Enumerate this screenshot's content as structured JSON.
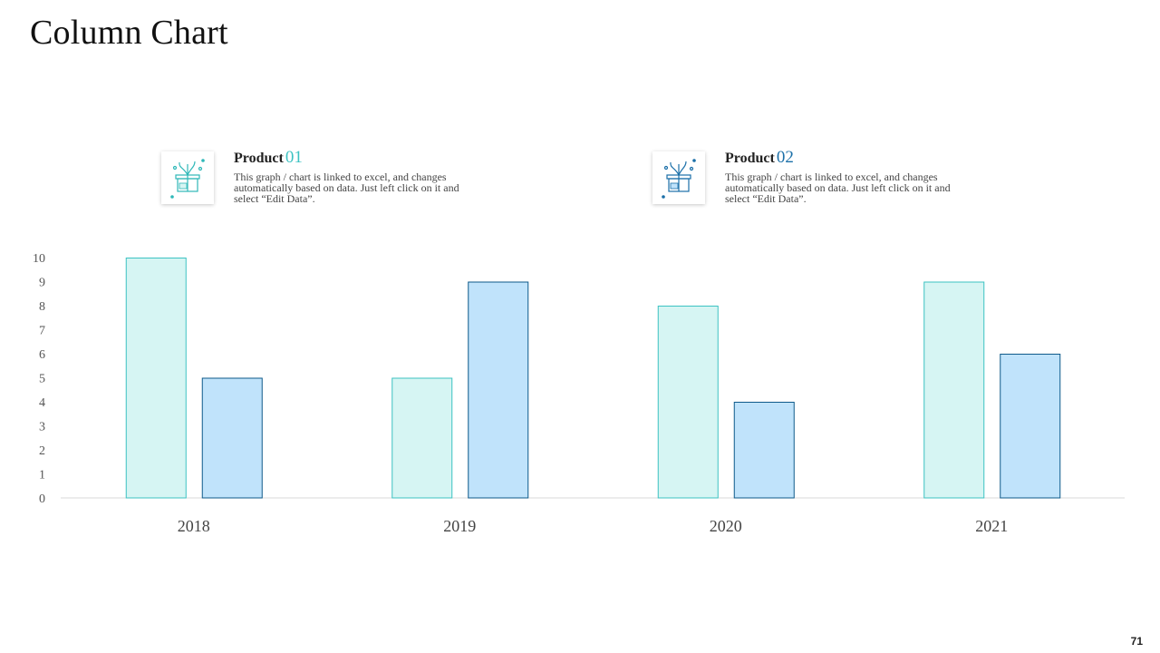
{
  "slide": {
    "title": "Column Chart",
    "page_number": "71"
  },
  "legend": [
    {
      "label": "Product",
      "number": "01",
      "description": "This graph / chart is linked to excel, and changes automatically based on data. Just left click on it and select “Edit Data”.",
      "icon": "gift-box-icon",
      "fill": "#d6f5f3",
      "stroke": "#3cc2c2",
      "accent": "#2fb8b8"
    },
    {
      "label": "Product",
      "number": "02",
      "description": "This graph / chart is linked to excel, and changes automatically based on data. Just left click on it and select “Edit Data”.",
      "icon": "gift-box-icon",
      "fill": "#c0e3fb",
      "stroke": "#0e5a8a",
      "accent": "#1a6fa8"
    }
  ],
  "chart_data": {
    "type": "bar",
    "categories": [
      "2018",
      "2019",
      "2020",
      "2021"
    ],
    "series": [
      {
        "values": [
          10,
          5,
          8,
          9
        ],
        "fill": "#d6f5f3",
        "stroke": "#3cc2c2"
      },
      {
        "values": [
          5,
          9,
          4,
          6
        ],
        "fill": "#c0e3fb",
        "stroke": "#0e5a8a"
      }
    ],
    "yticks": [
      "0",
      "1",
      "2",
      "3",
      "4",
      "5",
      "6",
      "7",
      "8",
      "9",
      "10"
    ],
    "ylim": [
      0,
      10
    ],
    "grid": false,
    "legend_position": "top"
  }
}
